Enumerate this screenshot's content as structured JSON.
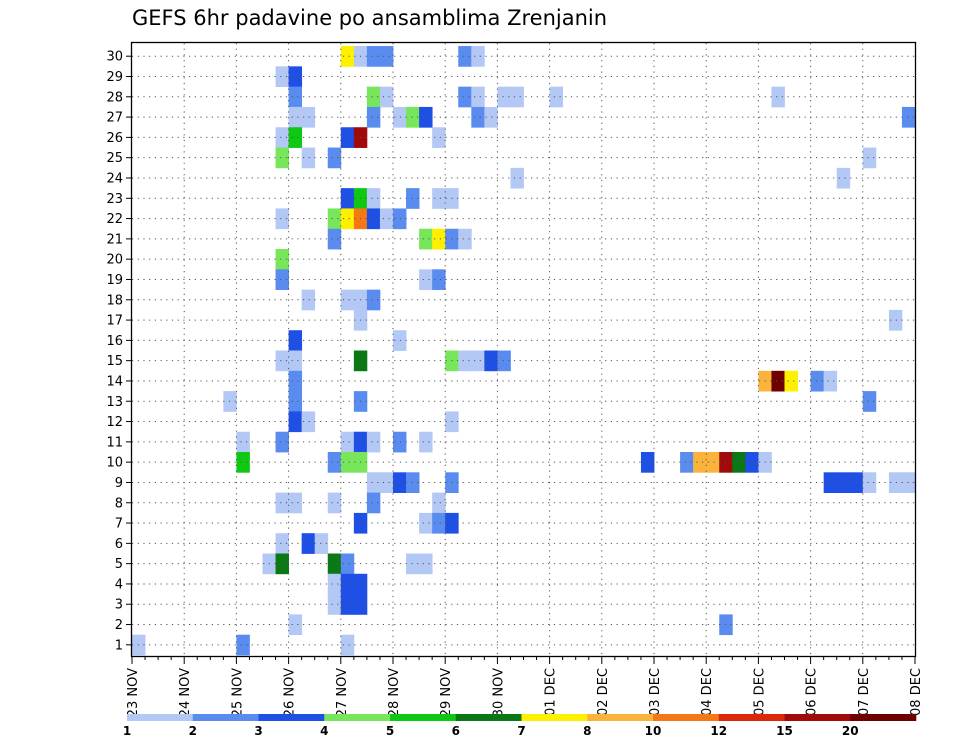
{
  "chart_data": {
    "type": "heatmap",
    "title": "GEFS 6hr padavine po ansamblima Zrenjanin",
    "xlabel": "",
    "ylabel": "",
    "y_categories": [
      "1",
      "2",
      "3",
      "4",
      "5",
      "6",
      "7",
      "8",
      "9",
      "10",
      "11",
      "12",
      "13",
      "14",
      "15",
      "16",
      "17",
      "18",
      "19",
      "20",
      "21",
      "22",
      "23",
      "24",
      "25",
      "26",
      "27",
      "28",
      "29",
      "30"
    ],
    "x_date_labels": [
      "23 NOV",
      "24 NOV",
      "25 NOV",
      "26 NOV",
      "27 NOV",
      "28 NOV",
      "29 NOV",
      "30 NOV",
      "01 DEC",
      "02 DEC",
      "03 DEC",
      "04 DEC",
      "05 DEC",
      "06 DEC",
      "07 DEC",
      "08 DEC"
    ],
    "time_steps_per_day": 4,
    "x_step_range": [
      0,
      60
    ],
    "colorbar": {
      "levels": [
        "1",
        "2",
        "3",
        "4",
        "5",
        "6",
        "7",
        "8",
        "10",
        "12",
        "15",
        "20"
      ],
      "colors": [
        "#b4c8f5",
        "#5a8cf0",
        "#1e50e6",
        "#78e65a",
        "#0fc814",
        "#0a7814",
        "#fff000",
        "#fab43c",
        "#f57814",
        "#dc280a",
        "#a00a0a",
        "#6e0000"
      ]
    },
    "cells": [
      [
        30,
        16,
        7
      ],
      [
        30,
        17,
        1
      ],
      [
        30,
        18,
        2
      ],
      [
        30,
        19,
        2
      ],
      [
        30,
        25,
        2
      ],
      [
        30,
        26,
        1
      ],
      [
        29,
        11,
        1
      ],
      [
        29,
        12,
        3
      ],
      [
        28,
        12,
        2
      ],
      [
        28,
        18,
        4
      ],
      [
        28,
        19,
        1
      ],
      [
        28,
        25,
        2
      ],
      [
        28,
        26,
        1
      ],
      [
        28,
        28,
        1
      ],
      [
        28,
        29,
        1
      ],
      [
        28,
        32,
        1
      ],
      [
        28,
        49,
        1
      ],
      [
        27,
        12,
        1
      ],
      [
        27,
        13,
        1
      ],
      [
        27,
        18,
        2
      ],
      [
        27,
        20,
        1
      ],
      [
        27,
        21,
        4
      ],
      [
        27,
        22,
        3
      ],
      [
        27,
        26,
        2
      ],
      [
        27,
        27,
        1
      ],
      [
        27,
        59,
        2
      ],
      [
        26,
        11,
        1
      ],
      [
        26,
        12,
        5
      ],
      [
        26,
        16,
        3
      ],
      [
        26,
        17,
        11
      ],
      [
        26,
        23,
        1
      ],
      [
        25,
        11,
        4
      ],
      [
        25,
        13,
        1
      ],
      [
        25,
        15,
        2
      ],
      [
        25,
        56,
        1
      ],
      [
        24,
        29,
        1
      ],
      [
        24,
        54,
        1
      ],
      [
        23,
        16,
        3
      ],
      [
        23,
        17,
        5
      ],
      [
        23,
        18,
        1
      ],
      [
        23,
        21,
        2
      ],
      [
        23,
        23,
        1
      ],
      [
        23,
        24,
        1
      ],
      [
        22,
        11,
        1
      ],
      [
        22,
        15,
        4
      ],
      [
        22,
        16,
        7
      ],
      [
        22,
        17,
        9
      ],
      [
        22,
        18,
        3
      ],
      [
        22,
        19,
        1
      ],
      [
        22,
        20,
        2
      ],
      [
        21,
        15,
        2
      ],
      [
        21,
        22,
        4
      ],
      [
        21,
        23,
        7
      ],
      [
        21,
        24,
        2
      ],
      [
        21,
        25,
        1
      ],
      [
        20,
        11,
        4
      ],
      [
        19,
        11,
        2
      ],
      [
        19,
        22,
        1
      ],
      [
        19,
        23,
        2
      ],
      [
        18,
        13,
        1
      ],
      [
        18,
        16,
        1
      ],
      [
        18,
        17,
        1
      ],
      [
        18,
        18,
        2
      ],
      [
        17,
        17,
        1
      ],
      [
        17,
        58,
        1
      ],
      [
        16,
        12,
        3
      ],
      [
        16,
        20,
        1
      ],
      [
        15,
        11,
        1
      ],
      [
        15,
        12,
        1
      ],
      [
        15,
        17,
        6
      ],
      [
        15,
        24,
        4
      ],
      [
        15,
        25,
        1
      ],
      [
        15,
        26,
        1
      ],
      [
        15,
        27,
        3
      ],
      [
        15,
        28,
        2
      ],
      [
        14,
        12,
        2
      ],
      [
        14,
        48,
        8
      ],
      [
        14,
        49,
        12
      ],
      [
        14,
        50,
        7
      ],
      [
        14,
        52,
        2
      ],
      [
        14,
        53,
        1
      ],
      [
        13,
        7,
        1
      ],
      [
        13,
        12,
        2
      ],
      [
        13,
        17,
        2
      ],
      [
        13,
        56,
        2
      ],
      [
        12,
        12,
        3
      ],
      [
        12,
        13,
        1
      ],
      [
        12,
        24,
        1
      ],
      [
        11,
        8,
        1
      ],
      [
        11,
        11,
        2
      ],
      [
        11,
        16,
        1
      ],
      [
        11,
        17,
        3
      ],
      [
        11,
        18,
        1
      ],
      [
        11,
        20,
        2
      ],
      [
        11,
        22,
        1
      ],
      [
        10,
        8,
        5
      ],
      [
        10,
        15,
        2
      ],
      [
        10,
        16,
        4
      ],
      [
        10,
        17,
        4
      ],
      [
        10,
        39,
        3
      ],
      [
        10,
        42,
        2
      ],
      [
        10,
        43,
        8
      ],
      [
        10,
        44,
        8
      ],
      [
        10,
        45,
        11
      ],
      [
        10,
        46,
        6
      ],
      [
        10,
        47,
        3
      ],
      [
        10,
        48,
        1
      ],
      [
        9,
        18,
        1
      ],
      [
        9,
        19,
        1
      ],
      [
        9,
        20,
        3
      ],
      [
        9,
        21,
        2
      ],
      [
        9,
        24,
        2
      ],
      [
        9,
        53,
        3
      ],
      [
        9,
        54,
        3
      ],
      [
        9,
        55,
        3
      ],
      [
        9,
        56,
        1
      ],
      [
        9,
        58,
        1
      ],
      [
        9,
        59,
        1
      ],
      [
        8,
        11,
        1
      ],
      [
        8,
        12,
        1
      ],
      [
        8,
        15,
        1
      ],
      [
        8,
        18,
        2
      ],
      [
        8,
        23,
        1
      ],
      [
        7,
        17,
        3
      ],
      [
        7,
        22,
        1
      ],
      [
        7,
        23,
        2
      ],
      [
        7,
        24,
        3
      ],
      [
        6,
        11,
        1
      ],
      [
        6,
        13,
        3
      ],
      [
        6,
        14,
        1
      ],
      [
        5,
        10,
        1
      ],
      [
        5,
        11,
        6
      ],
      [
        5,
        15,
        6
      ],
      [
        5,
        16,
        2
      ],
      [
        5,
        21,
        1
      ],
      [
        5,
        22,
        1
      ],
      [
        4,
        15,
        1
      ],
      [
        4,
        16,
        3
      ],
      [
        4,
        17,
        3
      ],
      [
        3,
        15,
        1
      ],
      [
        3,
        16,
        3
      ],
      [
        3,
        17,
        3
      ],
      [
        2,
        12,
        1
      ],
      [
        2,
        45,
        2
      ],
      [
        1,
        0,
        1
      ],
      [
        1,
        8,
        2
      ],
      [
        1,
        16,
        1
      ]
    ]
  }
}
